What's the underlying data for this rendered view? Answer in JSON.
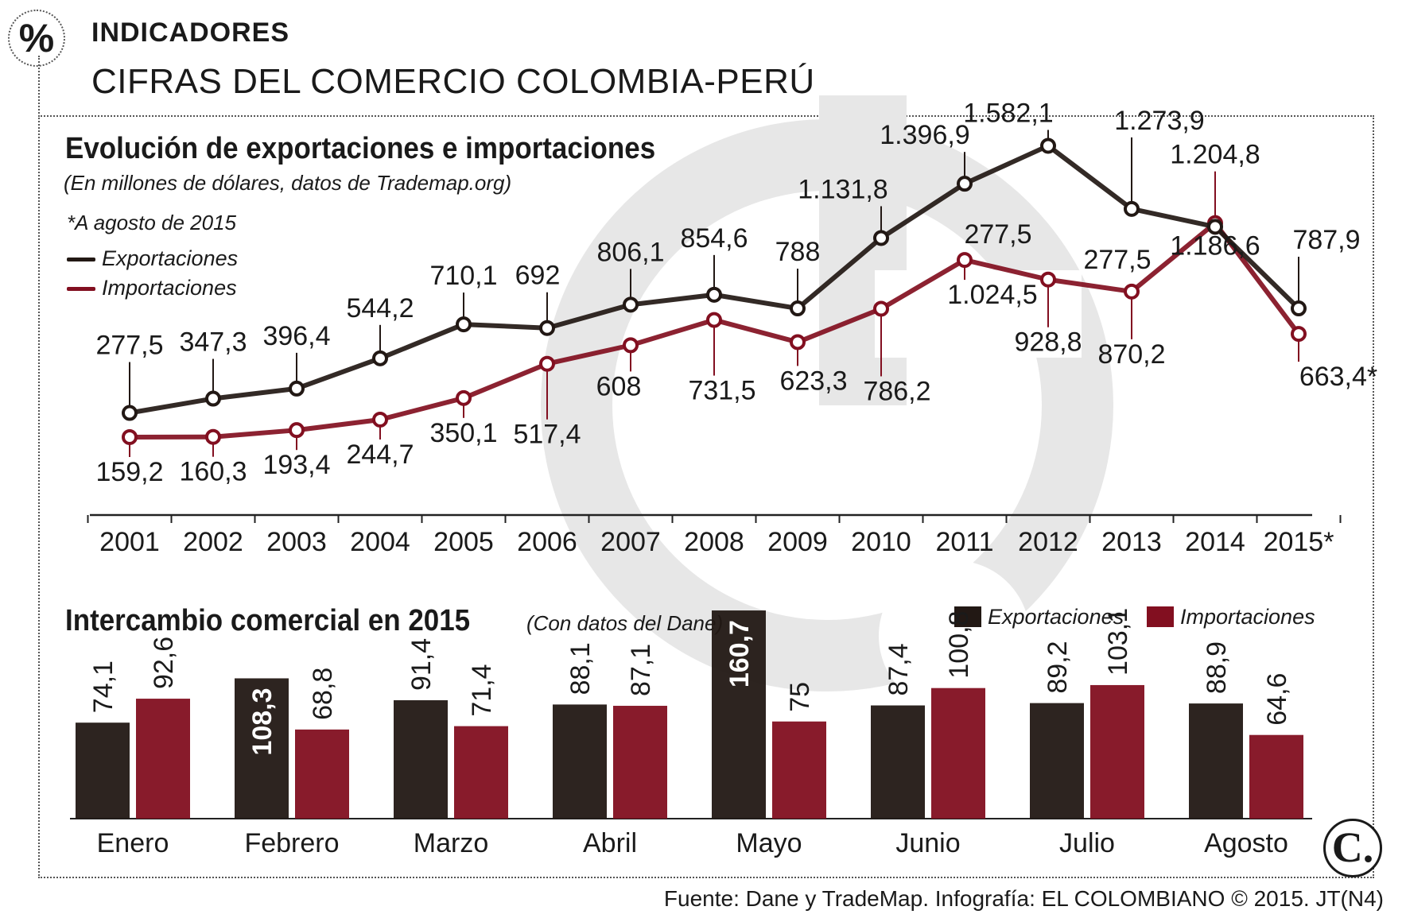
{
  "header": {
    "kicker": "INDICADORES",
    "headline": "CIFRAS DEL COMERCIO COLOMBIA-PERÚ",
    "percent_symbol": "%"
  },
  "line_section": {
    "title": "Evolución de exportaciones e importaciones",
    "subtitle": "(En millones de dólares, datos de Trademap.org)",
    "footnote": "*A agosto de 2015",
    "legend": {
      "exports": "Exportaciones",
      "imports": "Importaciones"
    }
  },
  "bar_section": {
    "title": "Intercambio comercial en 2015",
    "subtitle": "(Con datos del Dane)",
    "legend": {
      "exports": "Exportaciones",
      "imports": "Importaciones"
    }
  },
  "source": "Fuente: Dane y TradeMap. Infografía: EL COLOMBIANO © 2015. JT(N4)",
  "logo_text": "C.",
  "colors": {
    "exports": "#221814",
    "imports": "#820f20",
    "watermark": "#e7e7e7",
    "text": "#1a1a1a"
  },
  "chart_data": [
    {
      "type": "line",
      "title": "Evolución de exportaciones e importaciones",
      "x": [
        "2001",
        "2002",
        "2003",
        "2004",
        "2005",
        "2006",
        "2007",
        "2008",
        "2009",
        "2010",
        "2011",
        "2012",
        "2013",
        "2014",
        "2015*"
      ],
      "series": [
        {
          "name": "Exportaciones",
          "values": [
            277.5,
            347.3,
            396.4,
            544.2,
            710.1,
            692,
            806.1,
            854.6,
            788,
            1131.8,
            1396.9,
            1582.1,
            1273.9,
            1186.6,
            787.9
          ],
          "labels": [
            "277,5",
            "347,3",
            "396,4",
            "544,2",
            "710,1",
            "692",
            "806,1",
            "854,6",
            "788",
            "1.131,8",
            "1.396,9",
            "1.582,1",
            "1.273,9",
            "1.186,6",
            "787,9"
          ]
        },
        {
          "name": "Importaciones",
          "values": [
            159.2,
            160.3,
            193.4,
            244.7,
            350.1,
            517.4,
            608,
            731.5,
            623.3,
            786.2,
            1024.5,
            928.8,
            870.2,
            1204.8,
            663.4
          ],
          "labels": [
            "159,2",
            "160,3",
            "193,4",
            "244,7",
            "350,1",
            "517,4",
            "608",
            "731,5",
            "623,3",
            "786,2",
            "1.024,5",
            "928,8",
            "870,2",
            "1.204,8",
            "663,4*"
          ]
        }
      ],
      "extra_annotations": [
        "277,5",
        "277,5"
      ],
      "legend": "top-left",
      "grid": false
    },
    {
      "type": "bar",
      "title": "Intercambio comercial en 2015",
      "categories": [
        "Enero",
        "Febrero",
        "Marzo",
        "Abril",
        "Mayo",
        "Junio",
        "Julio",
        "Agosto"
      ],
      "series": [
        {
          "name": "Exportaciones",
          "values": [
            74.1,
            108.3,
            91.4,
            88.1,
            160.7,
            87.4,
            89.2,
            88.9
          ],
          "labels": [
            "74,1",
            "108,3",
            "91,4",
            "88,1",
            "160,7",
            "87,4",
            "89,2",
            "88,9"
          ]
        },
        {
          "name": "Importaciones",
          "values": [
            92.6,
            68.8,
            71.4,
            87.1,
            75,
            100.8,
            103.1,
            64.6
          ],
          "labels": [
            "92,6",
            "68,8",
            "71,4",
            "87,1",
            "75",
            "100,8",
            "103,1",
            "64,6"
          ]
        }
      ],
      "legend": "top-right",
      "grid": false
    }
  ]
}
